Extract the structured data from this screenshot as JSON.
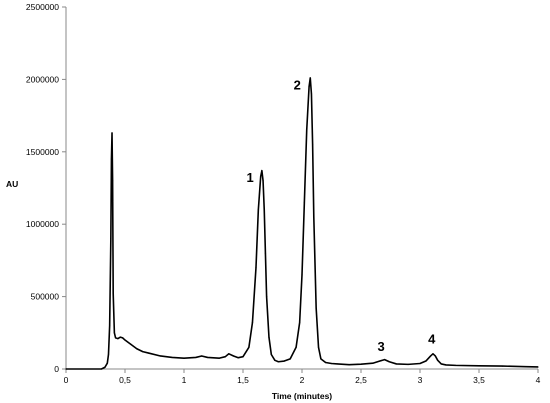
{
  "chart_data": {
    "type": "line",
    "title": "",
    "xlabel": "Time (minutes)",
    "ylabel": "AU",
    "xlim": [
      0,
      4
    ],
    "ylim": [
      0,
      2500000
    ],
    "grid": false,
    "x_ticks": [
      0,
      0.5,
      1,
      1.5,
      2,
      2.5,
      3,
      3.5,
      4
    ],
    "x_tick_labels": [
      "0",
      "0,5",
      "1",
      "1,5",
      "2",
      "2,5",
      "3",
      "3,5",
      "4"
    ],
    "y_ticks": [
      0,
      500000,
      1000000,
      1500000,
      2000000,
      2500000
    ],
    "y_tick_labels": [
      "0",
      "500000",
      "1000000",
      "1500000",
      "2000000",
      "2500000"
    ],
    "series": [
      {
        "color": "#000000",
        "x": [
          0,
          0.3,
          0.33,
          0.35,
          0.36,
          0.37,
          0.38,
          0.385,
          0.39,
          0.395,
          0.4,
          0.41,
          0.42,
          0.44,
          0.46,
          0.48,
          0.5,
          0.55,
          0.6,
          0.65,
          0.7,
          0.8,
          0.9,
          1.0,
          1.1,
          1.15,
          1.2,
          1.3,
          1.35,
          1.38,
          1.42,
          1.46,
          1.5,
          1.55,
          1.58,
          1.61,
          1.63,
          1.65,
          1.66,
          1.67,
          1.68,
          1.69,
          1.7,
          1.72,
          1.74,
          1.77,
          1.8,
          1.85,
          1.9,
          1.95,
          1.98,
          2.0,
          2.02,
          2.04,
          2.06,
          2.07,
          2.08,
          2.09,
          2.1,
          2.12,
          2.14,
          2.16,
          2.2,
          2.25,
          2.3,
          2.4,
          2.5,
          2.6,
          2.66,
          2.7,
          2.74,
          2.8,
          2.9,
          3.0,
          3.05,
          3.09,
          3.11,
          3.13,
          3.15,
          3.18,
          3.22,
          3.3,
          3.5,
          3.7,
          3.9,
          4.0
        ],
        "y": [
          0,
          0,
          12000,
          40000,
          100000,
          300000,
          900000,
          1450000,
          1630000,
          1300000,
          520000,
          250000,
          215000,
          210000,
          220000,
          215000,
          200000,
          170000,
          140000,
          120000,
          110000,
          90000,
          80000,
          75000,
          80000,
          90000,
          80000,
          75000,
          85000,
          105000,
          90000,
          78000,
          85000,
          150000,
          320000,
          700000,
          1100000,
          1330000,
          1370000,
          1300000,
          1100000,
          800000,
          500000,
          220000,
          100000,
          60000,
          50000,
          55000,
          70000,
          150000,
          320000,
          650000,
          1150000,
          1650000,
          1950000,
          2010000,
          1900000,
          1550000,
          1050000,
          420000,
          150000,
          70000,
          45000,
          38000,
          35000,
          30000,
          33000,
          40000,
          55000,
          65000,
          50000,
          35000,
          32000,
          38000,
          55000,
          90000,
          105000,
          90000,
          60000,
          35000,
          28000,
          25000,
          22000,
          20000,
          16000,
          14000
        ]
      }
    ],
    "annotations": [
      {
        "text": "1",
        "x": 1.56,
        "y": 1290000
      },
      {
        "text": "2",
        "x": 1.96,
        "y": 1930000
      },
      {
        "text": "3",
        "x": 2.67,
        "y": 125000
      },
      {
        "text": "4",
        "x": 3.1,
        "y": 175000
      }
    ]
  }
}
